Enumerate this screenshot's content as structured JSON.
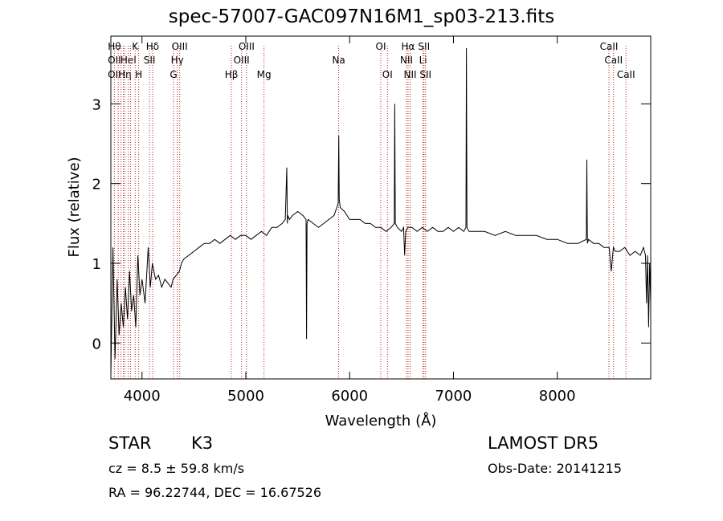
{
  "chart_data": {
    "type": "line",
    "title": "spec-57007-GAC097N16M1_sp03-213.fits",
    "xlabel": "Wavelength (Å)",
    "ylabel": "Flux (relative)",
    "xlim": [
      3700,
      8900
    ],
    "ylim": [
      -0.45,
      3.85
    ],
    "x_ticks": [
      4000,
      5000,
      6000,
      7000,
      8000
    ],
    "y_ticks": [
      0,
      1,
      2,
      3
    ],
    "grid": false,
    "line_color": "#000000",
    "marker_color": "#b22222",
    "series": [
      {
        "x": [
          3700,
          3720,
          3740,
          3760,
          3780,
          3800,
          3820,
          3840,
          3860,
          3880,
          3900,
          3920,
          3940,
          3960,
          3980,
          4000,
          4030,
          4060,
          4080,
          4100,
          4130,
          4160,
          4190,
          4220,
          4250,
          4280,
          4300,
          4330,
          4360,
          4380,
          4400,
          4450,
          4500,
          4550,
          4600,
          4650,
          4700,
          4750,
          4800,
          4850,
          4900,
          4950,
          5000,
          5050,
          5100,
          5150,
          5200,
          5250,
          5300,
          5350,
          5380,
          5395,
          5400,
          5405,
          5420,
          5450,
          5500,
          5550,
          5580,
          5585,
          5590,
          5600,
          5650,
          5700,
          5750,
          5800,
          5850,
          5890,
          5895,
          5900,
          5910,
          5950,
          6000,
          6050,
          6100,
          6150,
          6200,
          6250,
          6300,
          6350,
          6400,
          6430,
          6435,
          6440,
          6460,
          6500,
          6520,
          6530,
          6540,
          6560,
          6600,
          6650,
          6700,
          6750,
          6800,
          6850,
          6900,
          6950,
          7000,
          7050,
          7100,
          7120,
          7125,
          7130,
          7150,
          7200,
          7300,
          7400,
          7500,
          7600,
          7700,
          7800,
          7900,
          8000,
          8100,
          8200,
          8280,
          8285,
          8290,
          8300,
          8350,
          8400,
          8450,
          8500,
          8520,
          8540,
          8560,
          8600,
          8650,
          8700,
          8750,
          8800,
          8830,
          8850,
          8860,
          8870,
          8880,
          8890,
          8900
        ],
        "y": [
          -0.4,
          1.2,
          -0.2,
          0.8,
          0.1,
          0.5,
          0.2,
          0.7,
          0.3,
          0.9,
          0.4,
          0.6,
          0.2,
          1.1,
          0.6,
          0.8,
          0.5,
          1.2,
          0.7,
          1.0,
          0.8,
          0.85,
          0.7,
          0.8,
          0.75,
          0.7,
          0.8,
          0.85,
          0.9,
          1.0,
          1.05,
          1.1,
          1.15,
          1.2,
          1.25,
          1.25,
          1.3,
          1.25,
          1.3,
          1.35,
          1.3,
          1.35,
          1.35,
          1.3,
          1.35,
          1.4,
          1.35,
          1.45,
          1.45,
          1.5,
          1.55,
          2.2,
          1.5,
          1.6,
          1.55,
          1.6,
          1.65,
          1.6,
          1.55,
          0.05,
          1.5,
          1.55,
          1.5,
          1.45,
          1.5,
          1.55,
          1.6,
          1.75,
          2.6,
          1.8,
          1.7,
          1.65,
          1.55,
          1.55,
          1.55,
          1.5,
          1.5,
          1.45,
          1.45,
          1.4,
          1.45,
          1.5,
          3.0,
          1.5,
          1.45,
          1.4,
          1.45,
          1.1,
          1.4,
          1.45,
          1.45,
          1.4,
          1.45,
          1.4,
          1.45,
          1.4,
          1.4,
          1.45,
          1.4,
          1.45,
          1.4,
          1.45,
          3.7,
          1.45,
          1.4,
          1.4,
          1.4,
          1.35,
          1.4,
          1.35,
          1.35,
          1.35,
          1.3,
          1.3,
          1.25,
          1.25,
          1.3,
          2.3,
          1.25,
          1.3,
          1.25,
          1.25,
          1.2,
          1.2,
          0.9,
          1.2,
          1.15,
          1.15,
          1.2,
          1.1,
          1.15,
          1.1,
          1.2,
          1.1,
          0.5,
          1.1,
          0.2,
          1.0,
          0.5
        ]
      }
    ],
    "line_markers": [
      {
        "wl": 3734,
        "labels": [
          {
            "text": "Hθ",
            "row": 0
          },
          {
            "text": "OII",
            "row": 1
          },
          {
            "text": "OII",
            "row": 2
          }
        ]
      },
      {
        "wl": 3771,
        "labels": []
      },
      {
        "wl": 3798,
        "labels": []
      },
      {
        "wl": 3820,
        "labels": []
      },
      {
        "wl": 3835,
        "labels": [
          {
            "text": "Hη",
            "row": 2
          }
        ]
      },
      {
        "wl": 3869,
        "labels": [
          {
            "text": "HeI",
            "row": 1
          }
        ]
      },
      {
        "wl": 3889,
        "labels": []
      },
      {
        "wl": 3934,
        "labels": [
          {
            "text": "K",
            "row": 0
          }
        ]
      },
      {
        "wl": 3968,
        "labels": [
          {
            "text": "H",
            "row": 2
          }
        ]
      },
      {
        "wl": 4072,
        "labels": [
          {
            "text": "SII",
            "row": 1
          }
        ]
      },
      {
        "wl": 4102,
        "labels": [
          {
            "text": "Hδ",
            "row": 0
          }
        ]
      },
      {
        "wl": 4304,
        "labels": [
          {
            "text": "G",
            "row": 2
          }
        ]
      },
      {
        "wl": 4340,
        "labels": [
          {
            "text": "Hγ",
            "row": 1
          }
        ]
      },
      {
        "wl": 4363,
        "labels": [
          {
            "text": "OIII",
            "row": 0
          }
        ]
      },
      {
        "wl": 4861,
        "labels": [
          {
            "text": "Hβ",
            "row": 2
          }
        ]
      },
      {
        "wl": 4959,
        "labels": [
          {
            "text": "OIII",
            "row": 1
          }
        ]
      },
      {
        "wl": 5007,
        "labels": [
          {
            "text": "OIII",
            "row": 0
          }
        ]
      },
      {
        "wl": 5175,
        "labels": [
          {
            "text": "Mg",
            "row": 2
          }
        ]
      },
      {
        "wl": 5894,
        "labels": [
          {
            "text": "Na",
            "row": 1
          }
        ]
      },
      {
        "wl": 6300,
        "labels": [
          {
            "text": "OI",
            "row": 0
          }
        ]
      },
      {
        "wl": 6364,
        "labels": [
          {
            "text": "OI",
            "row": 2
          }
        ]
      },
      {
        "wl": 6548,
        "labels": [
          {
            "text": "NII",
            "row": 1
          }
        ]
      },
      {
        "wl": 6563,
        "labels": [
          {
            "text": "Hα",
            "row": 0
          }
        ]
      },
      {
        "wl": 6583,
        "labels": [
          {
            "text": "NII",
            "row": 2
          }
        ]
      },
      {
        "wl": 6707,
        "labels": [
          {
            "text": "Li",
            "row": 1
          }
        ]
      },
      {
        "wl": 6716,
        "labels": [
          {
            "text": "SII",
            "row": 0
          }
        ]
      },
      {
        "wl": 6731,
        "labels": [
          {
            "text": "SII",
            "row": 2
          }
        ]
      },
      {
        "wl": 8498,
        "labels": [
          {
            "text": "CaII",
            "row": 0
          }
        ]
      },
      {
        "wl": 8542,
        "labels": [
          {
            "text": "CaII",
            "row": 1
          }
        ]
      },
      {
        "wl": 8662,
        "labels": [
          {
            "text": "CaII",
            "row": 2
          }
        ]
      }
    ]
  },
  "info": {
    "object_type": "STAR",
    "subclass": "K3",
    "survey": "LAMOST DR5",
    "redshift": "cz = 8.5 ± 59.8 km/s",
    "obs_date": "Obs-Date: 20141215",
    "coords": "RA =  96.22744, DEC =  16.67526"
  }
}
